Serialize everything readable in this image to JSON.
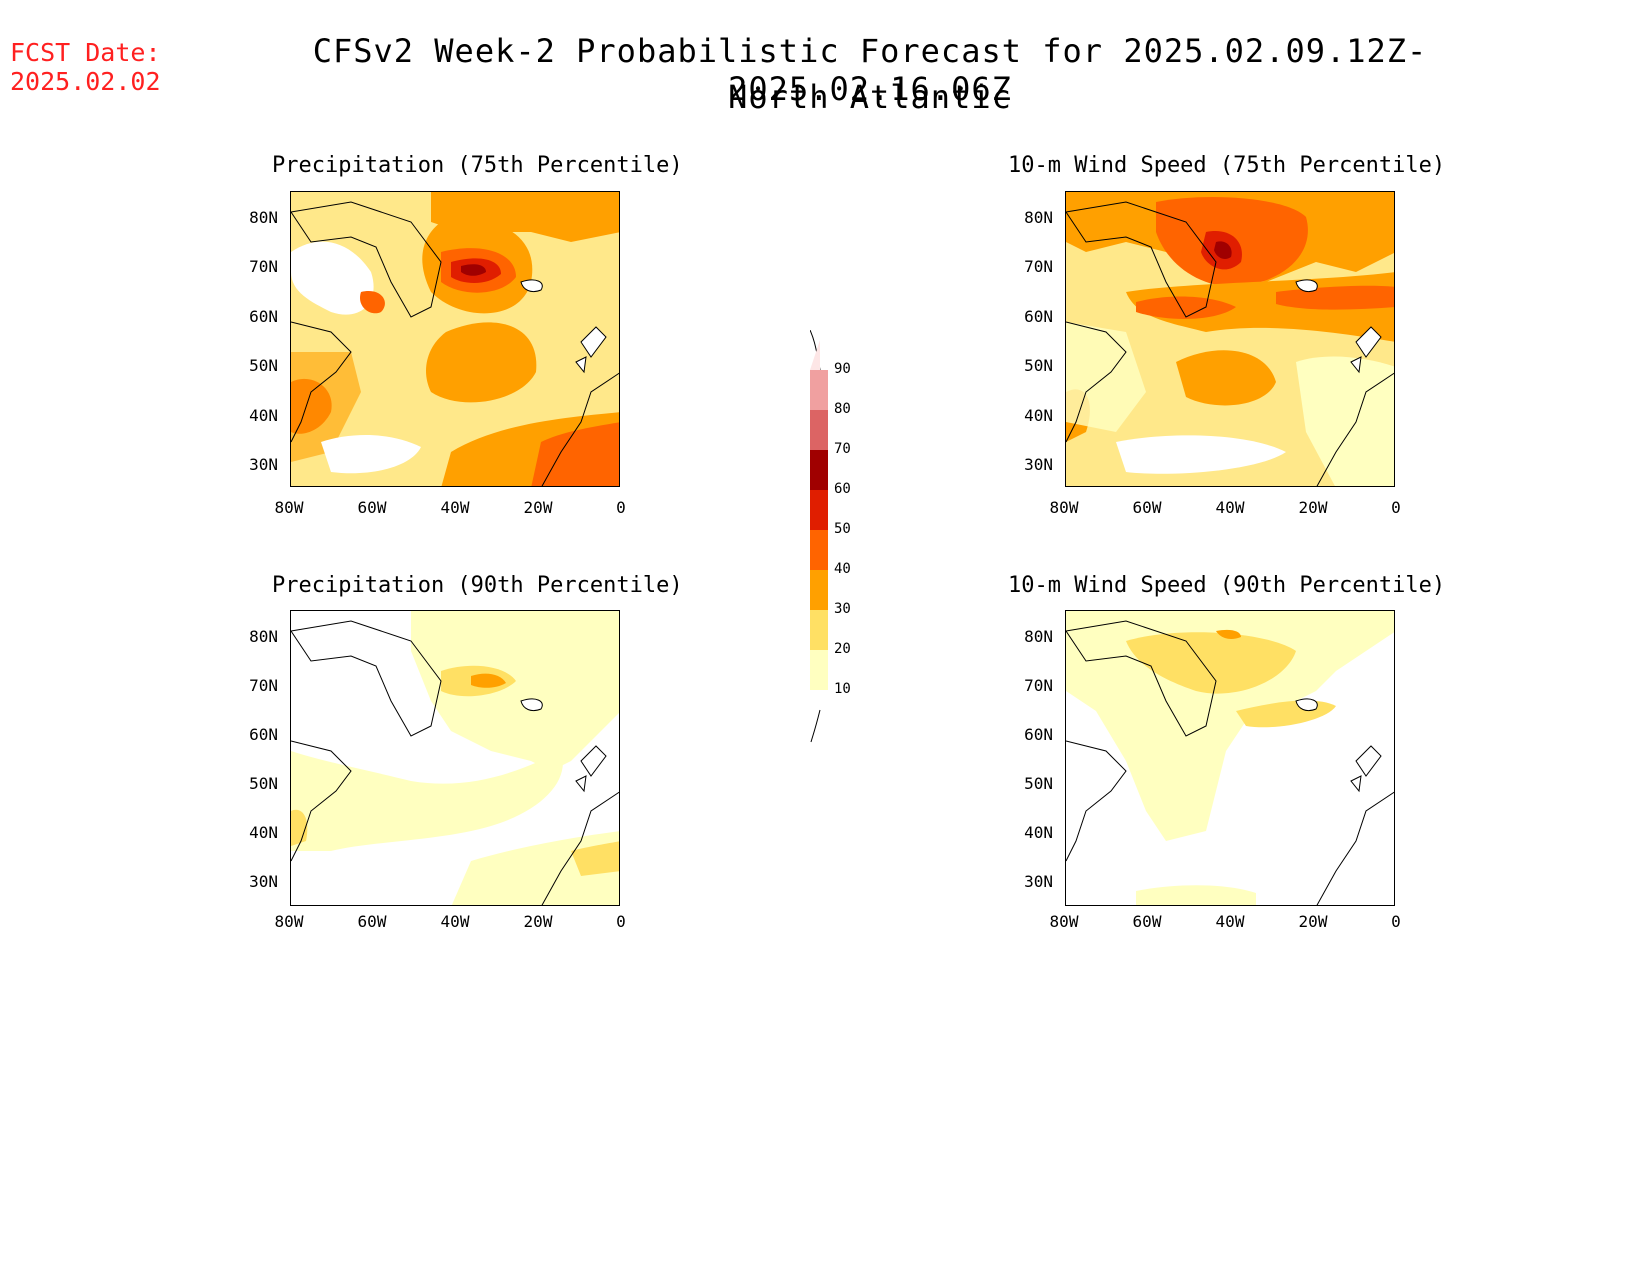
{
  "header": {
    "fcst_label": "FCST Date:",
    "fcst_date": "2025.02.02",
    "title": "CFSv2 Week-2 Probabilistic Forecast for 2025.02.09.12Z-2025.02.16.06Z",
    "subtitle": "North Atlantic"
  },
  "axes": {
    "lat_labels": [
      "80N",
      "70N",
      "60N",
      "50N",
      "40N",
      "30N"
    ],
    "lon_labels": [
      "80W",
      "60W",
      "40W",
      "20W",
      "0"
    ]
  },
  "panels": [
    {
      "title": "Precipitation (75th Percentile)"
    },
    {
      "title": "10-m Wind Speed (75th Percentile)"
    },
    {
      "title": "Precipitation (90th Percentile)"
    },
    {
      "title": "10-m Wind Speed (90th Percentile)"
    }
  ],
  "colorbar": {
    "levels": [
      "90",
      "80",
      "70",
      "60",
      "50",
      "40",
      "30",
      "20",
      "10"
    ],
    "colors": [
      "#fde6e6",
      "#f0a0a0",
      "#dc6464",
      "#a00000",
      "#e01e00",
      "#ff6400",
      "#ffa000",
      "#ffe064",
      "#ffffc0"
    ]
  }
}
